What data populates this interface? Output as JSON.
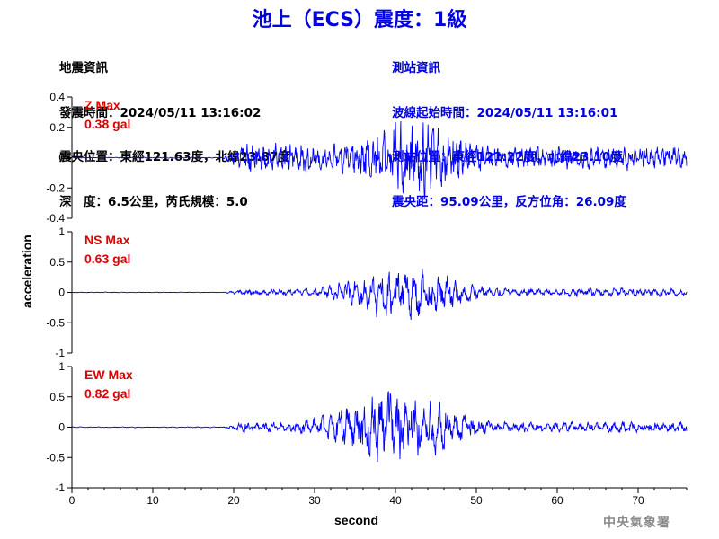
{
  "title": "池上（ECS）震度：1級",
  "earthquake_info": {
    "heading": "地震資訊",
    "origin_time": "發震時間：2024/05/11 13:16:02",
    "epicenter": "震央位置：東經121.63度，北緯23.87度",
    "depth_magnitude": "深　度：6.5公里，芮氏規模：5.0"
  },
  "station_info": {
    "heading": "測站資訊",
    "wave_start": "波線起始時間：2024/05/11 13:16:01",
    "station_position": "測站位置：東經121.22度，北緯23.10度",
    "distance_azimuth": "震央距：95.09公里，反方位角：26.09度"
  },
  "ylabel": "acceleration",
  "xlabel": "second",
  "footer": "中央氣象署",
  "colors": {
    "trace": "#0000ff",
    "max_label": "#e00000",
    "title": "#0000e0"
  },
  "chart_data": [
    {
      "type": "line",
      "component": "Z",
      "max_label": "Z Max",
      "max_value": "0.38 gal",
      "peak": 0.38,
      "ylim": [
        -0.4,
        0.4
      ],
      "yticks": [
        "0.4",
        "0.2",
        "0",
        "-0.2",
        "-0.4"
      ],
      "yvals": [
        0.4,
        0.2,
        0,
        -0.2,
        -0.4
      ],
      "noise_start": 18.5,
      "peak_time": 42,
      "spread": 8,
      "early_level": 0.09,
      "late_level": 0.07
    },
    {
      "type": "line",
      "component": "NS",
      "max_label": "NS Max",
      "max_value": "0.63 gal",
      "peak": 0.63,
      "ylim": [
        -1,
        1
      ],
      "yticks": [
        "1",
        "0.5",
        "0",
        "-0.5",
        "-1"
      ],
      "yvals": [
        1,
        0.5,
        0,
        -0.5,
        -1
      ],
      "noise_start": 18.5,
      "peak_time": 41,
      "spread": 8,
      "early_level": 0.05,
      "late_level": 0.06
    },
    {
      "type": "line",
      "component": "EW",
      "max_label": "EW Max",
      "max_value": "0.82 gal",
      "peak": 0.82,
      "ylim": [
        -1,
        1
      ],
      "yticks": [
        "1",
        "0.5",
        "0",
        "-0.5",
        "-1"
      ],
      "yvals": [
        1,
        0.5,
        0,
        -0.5,
        -1
      ],
      "noise_start": 18.5,
      "peak_time": 40,
      "spread": 9,
      "early_level": 0.07,
      "late_level": 0.08
    }
  ],
  "x_axis": {
    "xlim": [
      0,
      76
    ],
    "ticks": [
      0,
      10,
      20,
      30,
      40,
      50,
      60,
      70
    ],
    "tick_labels": [
      "0",
      "10",
      "20",
      "30",
      "40",
      "50",
      "60",
      "70"
    ]
  }
}
